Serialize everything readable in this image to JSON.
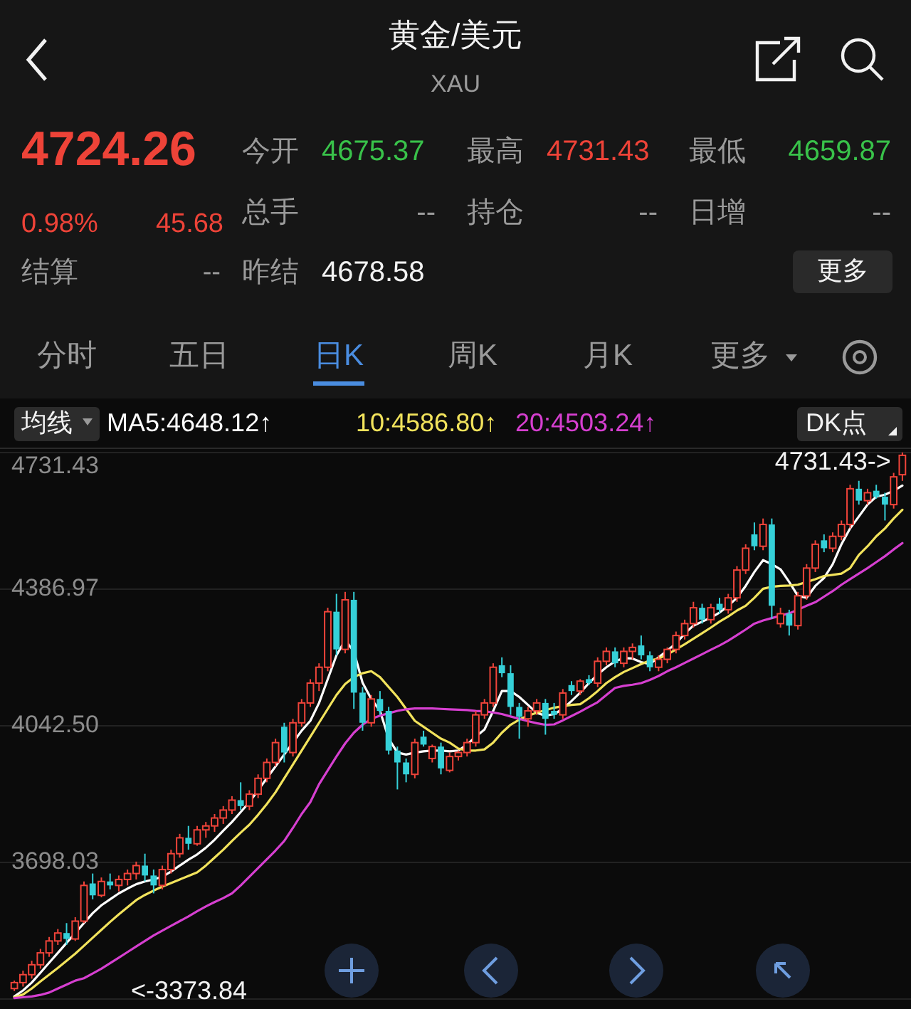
{
  "chart_data": [
    {
      "type": "other",
      "title": "黄金/美元",
      "subtitle": "XAU",
      "annotations": [
        "4724.26",
        "0.98%",
        "45.68",
        "结算",
        "--",
        "今开",
        "4675.37",
        "最高",
        "4731.43",
        "最低",
        "4659.87",
        "总手",
        "--",
        "持仓",
        "--",
        "日增",
        "--",
        "昨结",
        "4678.58",
        "更多",
        "分时",
        "五日",
        "日K",
        "周K",
        "月K",
        "更多"
      ]
    },
    {
      "type": "candlestick",
      "categories": [
        null,
        null,
        null,
        null,
        null,
        null,
        null,
        null,
        null,
        null,
        null,
        null,
        null,
        null,
        null,
        null,
        null,
        null,
        null,
        null,
        null,
        null,
        null,
        null,
        null,
        null,
        null,
        null,
        null,
        null,
        null,
        null,
        null,
        null,
        null,
        null,
        null,
        null,
        null,
        null,
        null,
        null,
        null,
        null,
        null,
        null,
        null,
        null,
        null,
        null,
        null,
        null,
        null,
        null,
        null,
        null,
        null,
        null,
        null,
        null,
        null,
        null,
        null,
        null,
        null,
        null,
        null,
        null,
        null,
        null,
        null,
        null,
        null,
        null,
        null,
        null,
        null,
        null,
        null,
        null,
        null,
        null,
        null,
        null,
        null,
        null,
        null,
        null,
        null,
        null,
        null,
        null,
        null,
        null,
        null,
        null,
        null,
        null,
        null,
        null,
        null,
        null,
        null
      ],
      "ohlc": [
        [
          3380,
          3400,
          3373.84,
          3395
        ],
        [
          3395,
          3425,
          3385,
          3415
        ],
        [
          3415,
          3450,
          3405,
          3440
        ],
        [
          3440,
          3480,
          3430,
          3470
        ],
        [
          3470,
          3510,
          3460,
          3500
        ],
        [
          3500,
          3530,
          3490,
          3520
        ],
        [
          3520,
          3545,
          3490,
          3505
        ],
        [
          3505,
          3560,
          3500,
          3550
        ],
        [
          3550,
          3650,
          3545,
          3640
        ],
        [
          3645,
          3670,
          3605,
          3615
        ],
        [
          3615,
          3660,
          3610,
          3650
        ],
        [
          3650,
          3670,
          3630,
          3640
        ],
        [
          3640,
          3665,
          3625,
          3655
        ],
        [
          3655,
          3680,
          3640,
          3670
        ],
        [
          3670,
          3700,
          3655,
          3690
        ],
        [
          3690,
          3720,
          3650,
          3665
        ],
        [
          3665,
          3680,
          3620,
          3640
        ],
        [
          3640,
          3690,
          3630,
          3680
        ],
        [
          3680,
          3730,
          3670,
          3720
        ],
        [
          3720,
          3770,
          3710,
          3760
        ],
        [
          3760,
          3790,
          3730,
          3745
        ],
        [
          3745,
          3790,
          3740,
          3780
        ],
        [
          3780,
          3800,
          3760,
          3790
        ],
        [
          3790,
          3820,
          3775,
          3810
        ],
        [
          3810,
          3840,
          3795,
          3830
        ],
        [
          3830,
          3865,
          3820,
          3855
        ],
        [
          3855,
          3900,
          3830,
          3840
        ],
        [
          3840,
          3880,
          3830,
          3870
        ],
        [
          3870,
          3920,
          3860,
          3910
        ],
        [
          3910,
          3960,
          3900,
          3950
        ],
        [
          3950,
          4010,
          3940,
          4000
        ],
        [
          4040,
          4050,
          3950,
          3975
        ],
        [
          3975,
          4060,
          3965,
          4050
        ],
        [
          4050,
          4110,
          4040,
          4100
        ],
        [
          4100,
          4160,
          4090,
          4150
        ],
        [
          4150,
          4200,
          4130,
          4190
        ],
        [
          4190,
          4340,
          4180,
          4330
        ],
        [
          4330,
          4375,
          4220,
          4235
        ],
        [
          4235,
          4380,
          4225,
          4360
        ],
        [
          4360,
          4380,
          4085,
          4126
        ],
        [
          4126,
          4140,
          4030,
          4050
        ],
        [
          4050,
          4120,
          4040,
          4110
        ],
        [
          4110,
          4130,
          4070,
          4080
        ],
        [
          4080,
          4090,
          3970,
          3980
        ],
        [
          3980,
          3990,
          3882,
          3950
        ],
        [
          3950,
          3960,
          3900,
          3920
        ],
        [
          3920,
          4010,
          3910,
          4000
        ],
        [
          4015,
          4030,
          3990,
          3995
        ],
        [
          3960,
          3995,
          3950,
          3990
        ],
        [
          3990,
          4000,
          3920,
          3935
        ],
        [
          3930,
          3975,
          3925,
          3965
        ],
        [
          3965,
          3980,
          3955,
          3975
        ],
        [
          3975,
          4010,
          3965,
          4000
        ],
        [
          4000,
          4080,
          3990,
          4070
        ],
        [
          4070,
          4110,
          4060,
          4100
        ],
        [
          4100,
          4200,
          4090,
          4190
        ],
        [
          4195,
          4215,
          4165,
          4175
        ],
        [
          4175,
          4195,
          4070,
          4090
        ],
        [
          4090,
          4100,
          4010,
          4065
        ],
        [
          4060,
          4090,
          4040,
          4080
        ],
        [
          4080,
          4110,
          4070,
          4100
        ],
        [
          4100,
          4110,
          4020,
          4060
        ],
        [
          4080,
          4100,
          4060,
          4070
        ],
        [
          4070,
          4135,
          4060,
          4125
        ],
        [
          4145,
          4155,
          4120,
          4130
        ],
        [
          4130,
          4160,
          4120,
          4155
        ],
        [
          4160,
          4170,
          4145,
          4150
        ],
        [
          4150,
          4215,
          4140,
          4205
        ],
        [
          4205,
          4240,
          4195,
          4230
        ],
        [
          4230,
          4240,
          4190,
          4200
        ],
        [
          4200,
          4240,
          4190,
          4230
        ],
        [
          4230,
          4250,
          4210,
          4240
        ],
        [
          4245,
          4270,
          4210,
          4220
        ],
        [
          4220,
          4230,
          4180,
          4190
        ],
        [
          4190,
          4220,
          4180,
          4210
        ],
        [
          4210,
          4240,
          4200,
          4235
        ],
        [
          4235,
          4280,
          4225,
          4270
        ],
        [
          4270,
          4310,
          4260,
          4300
        ],
        [
          4300,
          4355,
          4290,
          4340
        ],
        [
          4340,
          4350,
          4300,
          4310
        ],
        [
          4310,
          4350,
          4300,
          4340
        ],
        [
          4350,
          4365,
          4325,
          4335
        ],
        [
          4335,
          4375,
          4325,
          4365
        ],
        [
          4365,
          4445,
          4355,
          4435
        ],
        [
          4435,
          4500,
          4425,
          4490
        ],
        [
          4525,
          4555,
          4485,
          4495
        ],
        [
          4495,
          4565,
          4485,
          4550
        ],
        [
          4550,
          4565,
          4312,
          4345
        ],
        [
          4300,
          4340,
          4290,
          4325
        ],
        [
          4325,
          4335,
          4270,
          4295
        ],
        [
          4295,
          4380,
          4285,
          4370
        ],
        [
          4370,
          4450,
          4360,
          4440
        ],
        [
          4440,
          4510,
          4430,
          4500
        ],
        [
          4510,
          4525,
          4480,
          4490
        ],
        [
          4490,
          4530,
          4480,
          4520
        ],
        [
          4520,
          4560,
          4510,
          4550
        ],
        [
          4550,
          4650,
          4540,
          4640
        ],
        [
          4640,
          4660,
          4600,
          4610
        ],
        [
          4610,
          4640,
          4600,
          4630
        ],
        [
          4635,
          4650,
          4615,
          4620
        ],
        [
          4620,
          4630,
          4560,
          4600
        ],
        [
          4600,
          4680,
          4590,
          4670
        ],
        [
          4675.37,
          4731.43,
          4659.87,
          4724.26
        ]
      ],
      "ylim": [
        3353.56,
        4742
      ],
      "yticks": [
        {
          "value": 3353.56,
          "label": null
        },
        3698.03,
        {
          "value": 4042.5,
          "label": "4042.50"
        },
        4386.97,
        4731.43
      ],
      "grid": "y",
      "tick_labels": "y",
      "legend": "top left",
      "series": [
        {
          "name": "MA5:4648.12↑",
          "type": "line",
          "color": "#ffffff",
          "values": [
            3360,
            3375,
            3395,
            3420,
            3445,
            3470,
            3495,
            3520,
            3545,
            3570,
            3590,
            3605,
            3620,
            3632,
            3643,
            3650,
            3655,
            3662,
            3675,
            3690,
            3705,
            3718,
            3735,
            3755,
            3778,
            3800,
            3825,
            3850,
            3880,
            3910,
            3940,
            3970,
            4000,
            4030,
            4055,
            4100,
            4160,
            4220,
            4258,
            4230,
            4151,
            4110,
            4080,
            4010,
            3975,
            3970,
            3975,
            3978,
            3980,
            3980,
            3978,
            3980,
            3995,
            4015,
            4033,
            4080,
            4130,
            4130,
            4115,
            4095,
            4075,
            4068,
            4072,
            4085,
            4105,
            4126,
            4150,
            4172,
            4190,
            4205,
            4213,
            4212,
            4203,
            4198,
            4215,
            4232,
            4250,
            4275,
            4295,
            4305,
            4315,
            4328,
            4345,
            4365,
            4395,
            4430,
            4460,
            4450,
            4437,
            4405,
            4370,
            4365,
            4395,
            4415,
            4450,
            4500,
            4540,
            4570,
            4600,
            4620,
            4625,
            4635,
            4648
          ]
        },
        {
          "name": "10:4586.80↑",
          "type": "line",
          "color": "#f2e35c",
          "values": [
            3358,
            3365,
            3380,
            3398,
            3415,
            3432,
            3450,
            3468,
            3488,
            3508,
            3528,
            3548,
            3567,
            3585,
            3603,
            3616,
            3627,
            3637,
            3646,
            3655,
            3664,
            3673,
            3690,
            3710,
            3730,
            3752,
            3773,
            3793,
            3818,
            3845,
            3875,
            3910,
            3945,
            3980,
            4015,
            4050,
            4085,
            4120,
            4148,
            4165,
            4175,
            4180,
            4165,
            4140,
            4115,
            4085,
            4055,
            4040,
            4025,
            4010,
            4000,
            3985,
            3980,
            3980,
            3983,
            4000,
            4025,
            4045,
            4058,
            4068,
            4075,
            4082,
            4088,
            4092,
            4095,
            4097,
            4112,
            4130,
            4150,
            4165,
            4178,
            4188,
            4198,
            4207,
            4212,
            4222,
            4235,
            4248,
            4262,
            4276,
            4290,
            4305,
            4318,
            4333,
            4345,
            4365,
            4388,
            4393,
            4395,
            4396,
            4398,
            4405,
            4412,
            4420,
            4423,
            4426,
            4440,
            4473,
            4495,
            4520,
            4540,
            4565,
            4587
          ]
        },
        {
          "name": "20:4503.24↑",
          "type": "line",
          "color": "#d63fd0",
          "values": [
            3356,
            3358,
            3360,
            3364,
            3370,
            3380,
            3390,
            3400,
            3406,
            3418,
            3430,
            3444,
            3458,
            3472,
            3486,
            3500,
            3514,
            3526,
            3538,
            3550,
            3562,
            3575,
            3587,
            3598,
            3608,
            3620,
            3640,
            3662,
            3684,
            3706,
            3728,
            3752,
            3785,
            3820,
            3850,
            3895,
            3930,
            3965,
            3998,
            4025,
            4045,
            4060,
            4068,
            4074,
            4080,
            4084,
            4086,
            4086,
            4086,
            4085,
            4084,
            4083,
            4082,
            4080,
            4079,
            4076,
            4072,
            4066,
            4060,
            4054,
            4049,
            4045,
            4046,
            4056,
            4067,
            4078,
            4090,
            4102,
            4120,
            4138,
            4143,
            4146,
            4150,
            4158,
            4168,
            4180,
            4190,
            4201,
            4212,
            4223,
            4234,
            4245,
            4257,
            4271,
            4285,
            4300,
            4308,
            4314,
            4320,
            4326,
            4335,
            4345,
            4354,
            4368,
            4382,
            4398,
            4412,
            4426,
            4440,
            4455,
            4470,
            4487,
            4503
          ]
        }
      ],
      "annotations": [
        "均线",
        "DK点",
        "4731.43->",
        "<-3373.84"
      ]
    }
  ]
}
